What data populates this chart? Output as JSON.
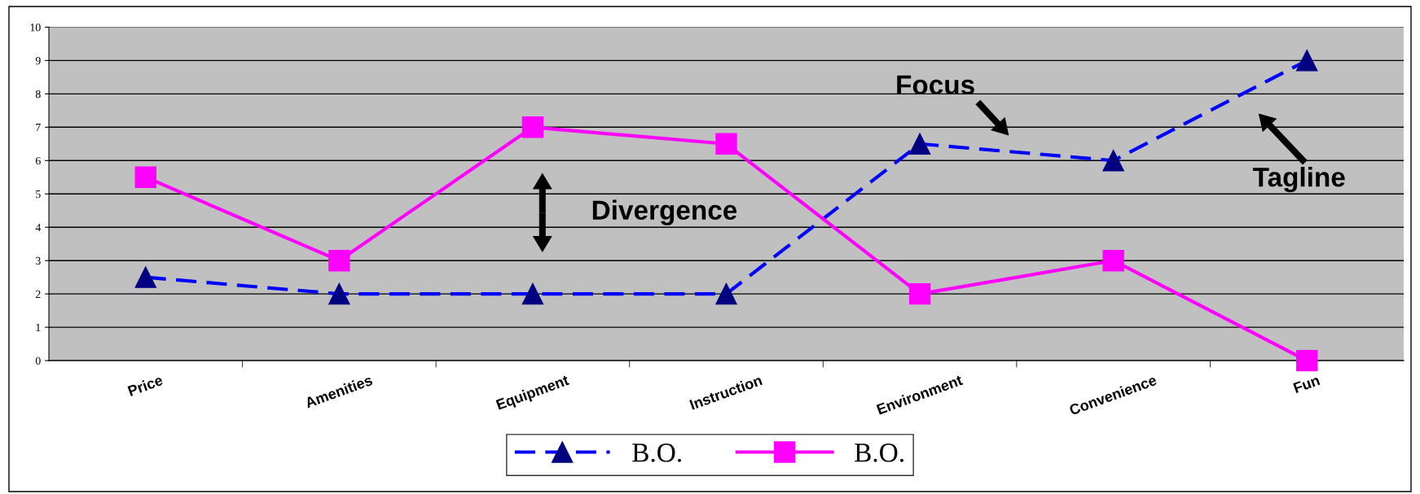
{
  "chart_data": {
    "type": "line",
    "categories": [
      "Price",
      "Amenities",
      "Equipment",
      "Instruction",
      "Environment",
      "Convenience",
      "Fun"
    ],
    "series": [
      {
        "name": "B.O.",
        "color": "#0000ff",
        "marker": "triangle",
        "line_style": "dashed",
        "values": [
          2.5,
          2,
          2,
          2,
          6.5,
          6,
          9
        ]
      },
      {
        "name": "B.O.",
        "color": "#ff00ff",
        "marker": "square",
        "line_style": "solid",
        "values": [
          5.5,
          3,
          7,
          6.5,
          2,
          3,
          0
        ]
      }
    ],
    "annotations": [
      "Divergence",
      "Focus",
      "Tagline"
    ],
    "ylim": [
      0,
      10
    ],
    "yticks": [
      0,
      1,
      2,
      3,
      4,
      5,
      6,
      7,
      8,
      9,
      10
    ],
    "grid": "y",
    "legend": "bottom"
  }
}
